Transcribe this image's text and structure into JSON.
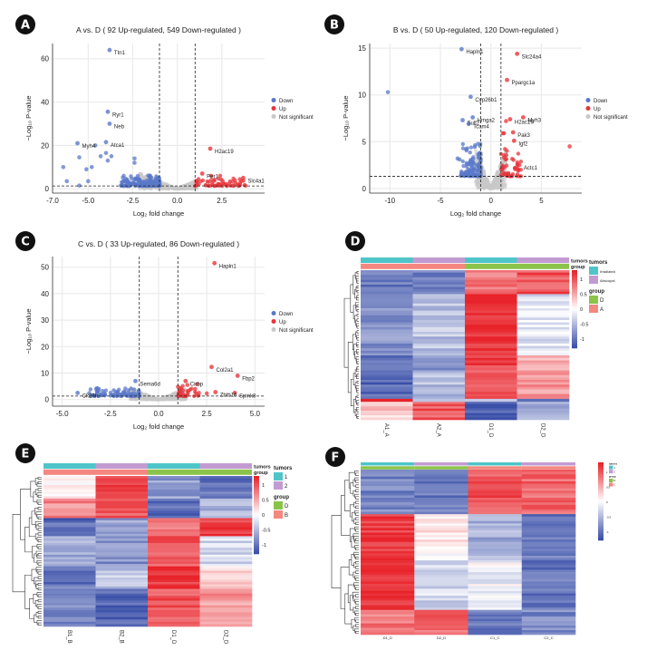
{
  "panels": [
    "A",
    "B",
    "C",
    "D",
    "E",
    "F"
  ],
  "chart_data": [
    {
      "panel": "A",
      "type": "scatter",
      "title": "A vs. D ( 92 Up-regulated, 549 Down-regulated )",
      "up_count": 92,
      "down_count": 549,
      "xlabel": "Log₂ fold change",
      "ylabel": "−Log₁₀ P-value",
      "xlim": [
        -7,
        4.9
      ],
      "ylim": [
        -2,
        67
      ],
      "xticks": [
        -7.0,
        -5.0,
        -2.5,
        0.0,
        2.5
      ],
      "xtick_labels": [
        "-7.0",
        "-5.0",
        "-2.5",
        "0.0",
        "2.5"
      ],
      "yticks": [
        0,
        20,
        40,
        60
      ],
      "ytick_labels": [
        "0",
        "20",
        "40",
        "60"
      ],
      "fc_threshold": 1,
      "p_threshold": 1.3,
      "legend": [
        "Down",
        "Up",
        "Not significant"
      ],
      "legend_position": "right",
      "labeled_points": [
        {
          "gene": "Ttn1",
          "x": -3.8,
          "y": 64,
          "group": "Down"
        },
        {
          "gene": "Ryr1",
          "x": -3.9,
          "y": 35.5,
          "group": "Down"
        },
        {
          "gene": "Neb",
          "x": -3.8,
          "y": 30,
          "group": "Down"
        },
        {
          "gene": "Atca1",
          "x": -4.0,
          "y": 21.5,
          "group": "Down"
        },
        {
          "gene": "Myh4",
          "x": -5.6,
          "y": 21,
          "group": "Down"
        },
        {
          "gene": "H2ac19",
          "x": 1.85,
          "y": 18.5,
          "group": "Up"
        },
        {
          "gene": "Per1",
          "x": 1.4,
          "y": 7,
          "group": "Up"
        },
        {
          "gene": "Slc4a1",
          "x": 3.7,
          "y": 5,
          "group": "Up"
        }
      ],
      "extra_points": [
        [
          -6.4,
          10
        ],
        [
          -6.2,
          3.5
        ],
        [
          -5.5,
          1.5
        ],
        [
          -5.5,
          14.5
        ],
        [
          -5.1,
          9
        ],
        [
          -5.0,
          3.5
        ],
        [
          -4.8,
          10
        ],
        [
          -4.6,
          20
        ],
        [
          -4.3,
          15
        ],
        [
          -4.0,
          16.5
        ],
        [
          -3.9,
          13
        ],
        [
          -3.7,
          15
        ],
        [
          -2.4,
          14
        ],
        [
          -2.4,
          12
        ],
        [
          1.9,
          6
        ],
        [
          2.4,
          6
        ],
        [
          3.6,
          3.5
        ]
      ]
    },
    {
      "panel": "B",
      "type": "scatter",
      "title": "B vs. D ( 50 Up-regulated, 120 Down-regulated )",
      "up_count": 50,
      "down_count": 120,
      "xlabel": "Log₂ fold change",
      "ylabel": "−Log₁₀ P-value",
      "xlim": [
        -12,
        9
      ],
      "ylim": [
        -0.5,
        15.5
      ],
      "xticks": [
        -10,
        -5,
        0,
        5
      ],
      "xtick_labels": [
        "-10",
        "-5",
        "0",
        "5"
      ],
      "yticks": [
        0,
        5,
        10,
        15
      ],
      "ytick_labels": [
        "0",
        "5",
        "10",
        "15"
      ],
      "fc_threshold": 1,
      "p_threshold": 1.3,
      "legend": [
        "Down",
        "Up",
        "Not significant"
      ],
      "legend_position": "right",
      "labeled_points": [
        {
          "gene": "Hapln1",
          "x": -2.9,
          "y": 14.9,
          "group": "Down"
        },
        {
          "gene": "Cyp26b1",
          "x": -2.0,
          "y": 9.8,
          "group": "Down"
        },
        {
          "gene": "Sulf2",
          "x": -2.8,
          "y": 7.3,
          "group": "Down"
        },
        {
          "gene": "Hmga2",
          "x": -1.8,
          "y": 7.6,
          "group": "Down"
        },
        {
          "gene": "Tcam4",
          "x": -2.2,
          "y": 6.9,
          "group": "Down"
        },
        {
          "gene": "Slc24a4",
          "x": 2.6,
          "y": 14.4,
          "group": "Up"
        },
        {
          "gene": "Ppargc1a",
          "x": 1.6,
          "y": 11.6,
          "group": "Up"
        },
        {
          "gene": "Myh3",
          "x": 3.2,
          "y": 7.6,
          "group": "Up"
        },
        {
          "gene": "H2ac19",
          "x": 1.9,
          "y": 7.4,
          "group": "Up"
        },
        {
          "gene": "Pak3",
          "x": 2.2,
          "y": 6.0,
          "group": "Up"
        },
        {
          "gene": "Igf2",
          "x": 2.3,
          "y": 5.1,
          "group": "Up"
        },
        {
          "gene": "Actc1",
          "x": 2.8,
          "y": 2.5,
          "group": "Up"
        }
      ],
      "extra_points": [
        [
          -10.2,
          10.3
        ],
        [
          7.8,
          4.5
        ],
        [
          -3.3,
          3.2
        ],
        [
          -3.1,
          3.1
        ],
        [
          1.5,
          7.2
        ],
        [
          1.3,
          5.9
        ],
        [
          1.2,
          5.9
        ]
      ]
    },
    {
      "panel": "C",
      "type": "scatter",
      "title": "C vs. D ( 33 Up-regulated, 86 Down-regulated )",
      "up_count": 33,
      "down_count": 86,
      "xlabel": "Log₂ fold change",
      "ylabel": "−Log₁₀ P-value",
      "xlim": [
        -5.5,
        5.5
      ],
      "ylim": [
        -2.5,
        54
      ],
      "xticks": [
        -5.0,
        -2.5,
        0.0,
        2.5,
        5.0
      ],
      "xtick_labels": [
        "-5.0",
        "-2.5",
        "0.0",
        "2.5",
        "5.0"
      ],
      "yticks": [
        0,
        10,
        20,
        30,
        40,
        50
      ],
      "ytick_labels": [
        "0",
        "10",
        "20",
        "30",
        "40",
        "50"
      ],
      "fc_threshold": 1,
      "p_threshold": 1.3,
      "legend": [
        "Down",
        "Up",
        "Not significant"
      ],
      "legend_position": "right",
      "labeled_points": [
        {
          "gene": "Hapln1",
          "x": 2.9,
          "y": 51.5,
          "group": "Up"
        },
        {
          "gene": "Col2a1",
          "x": 2.75,
          "y": 12.3,
          "group": "Up"
        },
        {
          "gene": "Cirbp",
          "x": 1.4,
          "y": 7,
          "group": "Up"
        },
        {
          "gene": "Fbp2",
          "x": 4.1,
          "y": 9,
          "group": "Up"
        },
        {
          "gene": "Zbtb16",
          "x": 2.95,
          "y": 2.8,
          "group": "Up"
        },
        {
          "gene": "Spink8",
          "x": 3.95,
          "y": 2.5,
          "group": "Up"
        },
        {
          "gene": "Sema6d",
          "x": -1.2,
          "y": 7,
          "group": "Down"
        },
        {
          "gene": "Ck26h",
          "x": -4.2,
          "y": 2.5,
          "group": "Down"
        }
      ],
      "extra_points": [
        [
          -3.6,
          2.4
        ],
        [
          -3.2,
          3
        ],
        [
          -2.9,
          3.2
        ],
        [
          2.5,
          2.3
        ],
        [
          2.0,
          5.8
        ],
        [
          1.5,
          5.5
        ],
        [
          1.9,
          4
        ]
      ]
    },
    {
      "panel": "D",
      "type": "heatmap",
      "columns": [
        "A1_A",
        "A2_A",
        "D1_D",
        "D2_D"
      ],
      "annotation_rows": [
        "tumors",
        "group"
      ],
      "tumors": [
        "Irradiated",
        "Abscopal",
        "Irradiated",
        "Abscopal"
      ],
      "group": [
        "A",
        "A",
        "D",
        "D"
      ],
      "legend_tumors": [
        "Irradiated",
        "Abscopal"
      ],
      "legend_group": [
        "D",
        "A"
      ],
      "colorbar_ticks": [
        "1",
        "0.5",
        "0",
        "-0.5",
        "-1"
      ],
      "row_blocks": [
        {
          "fraction": 0.16,
          "values": [
            -1.0,
            -1.0,
            0.8,
            1.0
          ]
        },
        {
          "fraction": 0.41,
          "values": [
            -0.8,
            -0.45,
            1.25,
            -0.2
          ]
        },
        {
          "fraction": 0.1,
          "values": [
            -1.0,
            -0.8,
            1.15,
            0.5
          ]
        },
        {
          "fraction": 0.19,
          "values": [
            -1.1,
            -0.5,
            1.0,
            0.6
          ]
        },
        {
          "fraction": 0.02,
          "values": [
            1.2,
            -0.5,
            -0.6,
            -0.9
          ]
        },
        {
          "fraction": 0.12,
          "values": [
            0.3,
            1.0,
            -1.2,
            -0.6
          ]
        }
      ]
    },
    {
      "panel": "E",
      "type": "heatmap",
      "columns": [
        "B1_B",
        "B2_B",
        "D1_D",
        "D2_D"
      ],
      "annotation_rows": [
        "tumors",
        "group"
      ],
      "tumors": [
        "1",
        "2",
        "1",
        "2"
      ],
      "group": [
        "B",
        "B",
        "D",
        "D"
      ],
      "legend_tumors": [
        "1",
        "2"
      ],
      "legend_group": [
        "D",
        "B"
      ],
      "colorbar_ticks": [
        "1",
        "0.5",
        "0",
        "-0.5",
        "-1"
      ],
      "row_blocks": [
        {
          "fraction": 0.15,
          "values": [
            0.1,
            1.2,
            -0.7,
            -1.0
          ]
        },
        {
          "fraction": 0.13,
          "values": [
            0.7,
            1.0,
            -1.1,
            -0.6
          ]
        },
        {
          "fraction": 0.12,
          "values": [
            -1.1,
            -0.7,
            0.8,
            1.1
          ]
        },
        {
          "fraction": 0.2,
          "values": [
            -0.6,
            -0.8,
            1.0,
            -0.3
          ]
        },
        {
          "fraction": 0.15,
          "values": [
            -1.0,
            -0.4,
            1.2,
            0.3
          ]
        },
        {
          "fraction": 0.25,
          "values": [
            -0.8,
            -1.1,
            1.0,
            0.6
          ]
        }
      ]
    },
    {
      "panel": "F",
      "type": "heatmap",
      "columns": [
        "D1_D",
        "D2_D",
        "C1_C",
        "C2_C"
      ],
      "annotation_rows": [
        "tumors",
        "group"
      ],
      "tumors": [
        "1",
        "2",
        "1",
        "2"
      ],
      "group": [
        "D",
        "D",
        "C",
        "C"
      ],
      "legend_tumors": [
        "1",
        "2"
      ],
      "legend_group": [
        "D",
        "C"
      ],
      "colorbar_ticks": [
        "1",
        "0.5",
        "0",
        "-0.5",
        "-1"
      ],
      "row_blocks": [
        {
          "fraction": 0.27,
          "values": [
            -0.9,
            -1.0,
            1.0,
            0.9
          ]
        },
        {
          "fraction": 0.28,
          "values": [
            1.2,
            0.1,
            -0.6,
            -1.0
          ]
        },
        {
          "fraction": 0.3,
          "values": [
            1.2,
            -0.3,
            -0.1,
            -1.0
          ]
        },
        {
          "fraction": 0.15,
          "values": [
            0.8,
            0.9,
            -1.0,
            -0.9
          ]
        }
      ]
    }
  ],
  "colors": {
    "down": "#5a78c8",
    "up": "#e8343a",
    "not_significant": "#c8c8c8",
    "heat_low": "#3a4fa8",
    "heat_mid": "#ffffff",
    "heat_high": "#e8232a",
    "tumors_1": "#4ec5c9",
    "tumors_2": "#c39bd3",
    "group_ref": "#8bc34a",
    "group_test": "#f4877f"
  }
}
